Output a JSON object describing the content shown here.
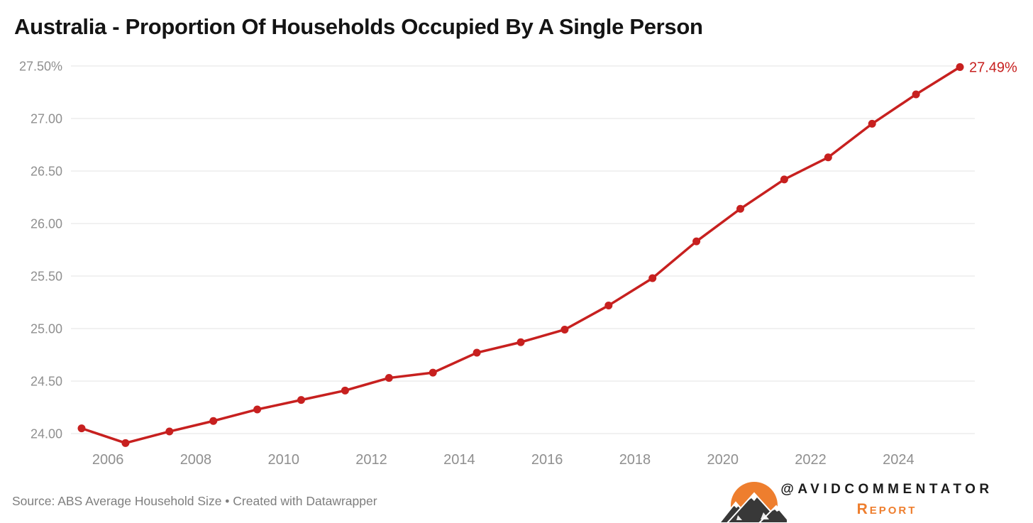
{
  "header": {
    "title": "Australia - Proportion Of Households Occupied By A Single Person"
  },
  "chart_data": {
    "type": "line",
    "title": "Australia - Proportion Of Households Occupied By A Single Person",
    "series": [
      {
        "name": "Proportion of households occupied by a single person",
        "x": [
          2005,
          2006,
          2007,
          2008,
          2009,
          2010,
          2011,
          2012,
          2013,
          2014,
          2015,
          2016,
          2017,
          2018,
          2019,
          2020,
          2021,
          2022,
          2023,
          2024,
          2025
        ],
        "values": [
          24.05,
          23.91,
          24.02,
          24.12,
          24.23,
          24.32,
          24.41,
          24.53,
          24.58,
          24.77,
          24.87,
          24.99,
          25.22,
          25.48,
          25.83,
          26.14,
          26.42,
          26.63,
          26.95,
          27.23,
          27.49
        ]
      }
    ],
    "xlabel": "",
    "ylabel": "",
    "ylim": [
      23.85,
      27.55
    ],
    "y_ticks": [
      24.0,
      24.5,
      25.0,
      25.5,
      26.0,
      26.5,
      27.0,
      27.5
    ],
    "y_tick_labels": [
      "24.00",
      "24.50",
      "25.00",
      "25.50",
      "26.00",
      "26.50",
      "27.00",
      "27.50%"
    ],
    "x_ticks": [
      2006,
      2008,
      2010,
      2012,
      2014,
      2016,
      2018,
      2020,
      2022,
      2024
    ],
    "x_tick_labels": [
      "2006",
      "2008",
      "2010",
      "2012",
      "2014",
      "2016",
      "2018",
      "2020",
      "2022",
      "2024"
    ],
    "end_label": "27.49%",
    "grid": "horizontal",
    "legend_position": "none",
    "marker": "circle",
    "line_color": "#c7201f"
  },
  "footer": {
    "source": "Source: ABS Average Household Size • Created with Datawrapper"
  },
  "branding": {
    "handle": "@AVIDCOMMENTATOR",
    "subtitle": "Report",
    "logo": "mountain-sun-logo"
  },
  "colors": {
    "accent_red": "#c7201f",
    "brand_orange": "#ee7e2e",
    "axis_text": "#8f8f8f",
    "grid_line": "#e3e3e3",
    "title_text": "#141414",
    "source_text": "#7e7e7e",
    "mountain_dark": "#383838"
  }
}
